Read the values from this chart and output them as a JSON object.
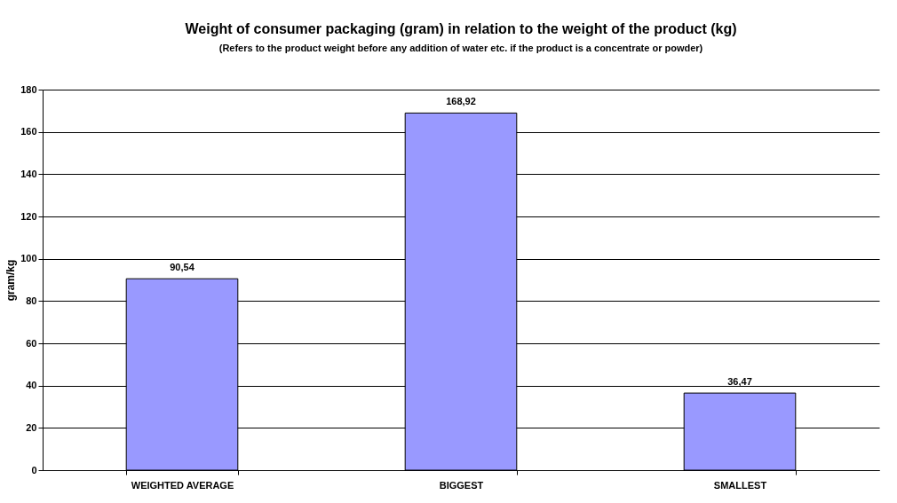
{
  "chart_data": {
    "type": "bar",
    "title": "Weight of consumer packaging (gram) in relation to the weight of the product (kg)",
    "subtitle": "(Refers to the product weight before any addition of water etc. if the product is a concentrate or powder)",
    "ylabel": "gram/kg",
    "categories": [
      "WEIGHTED AVERAGE",
      "BIGGEST",
      "SMALLEST"
    ],
    "values": [
      90.54,
      168.92,
      36.47
    ],
    "value_labels": [
      "90,54",
      "168,92",
      "36,47"
    ],
    "color": "#9999ff",
    "ylim": [
      0,
      180
    ],
    "yticks": [
      0,
      20,
      40,
      60,
      80,
      100,
      120,
      140,
      160,
      180
    ],
    "grid": "y"
  }
}
